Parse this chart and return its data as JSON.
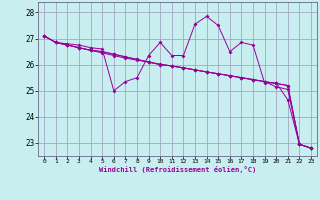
{
  "xlabel": "Windchill (Refroidissement éolien,°C)",
  "x": [
    0,
    1,
    2,
    3,
    4,
    5,
    6,
    7,
    8,
    9,
    10,
    11,
    12,
    13,
    14,
    15,
    16,
    17,
    18,
    19,
    20,
    21,
    22,
    23
  ],
  "line_jagged": [
    27.1,
    26.85,
    26.8,
    26.75,
    26.65,
    26.6,
    25.0,
    25.35,
    25.5,
    26.35,
    26.85,
    26.35,
    26.35,
    27.55,
    27.85,
    27.5,
    26.5,
    26.85,
    26.75,
    25.3,
    25.3,
    24.65,
    22.95,
    22.8
  ],
  "line_straight1": [
    27.1,
    26.85,
    26.75,
    26.65,
    26.55,
    26.5,
    26.4,
    26.3,
    26.2,
    26.1,
    26.0,
    25.95,
    25.88,
    25.8,
    25.72,
    25.65,
    25.58,
    25.5,
    25.43,
    25.35,
    25.28,
    25.2,
    22.95,
    22.8
  ],
  "line_straight2": [
    27.1,
    26.85,
    26.75,
    26.65,
    26.55,
    26.5,
    26.4,
    26.3,
    26.2,
    26.1,
    26.0,
    25.95,
    25.88,
    25.8,
    25.72,
    25.65,
    25.58,
    25.5,
    25.43,
    25.35,
    25.28,
    25.2,
    22.95,
    22.8
  ],
  "line_straight3": [
    27.1,
    26.85,
    26.75,
    26.65,
    26.55,
    26.45,
    26.35,
    26.25,
    26.17,
    26.1,
    26.02,
    25.95,
    25.87,
    25.8,
    25.72,
    25.65,
    25.57,
    25.5,
    25.42,
    25.35,
    25.15,
    25.05,
    22.95,
    22.8
  ],
  "line_color": "#990099",
  "bg_color": "#c8eef0",
  "grid_color": "#9999bb",
  "ylim": [
    22.5,
    28.4
  ],
  "yticks": [
    23,
    24,
    25,
    26,
    27,
    28
  ],
  "marker": "D",
  "markersize": 2.0
}
